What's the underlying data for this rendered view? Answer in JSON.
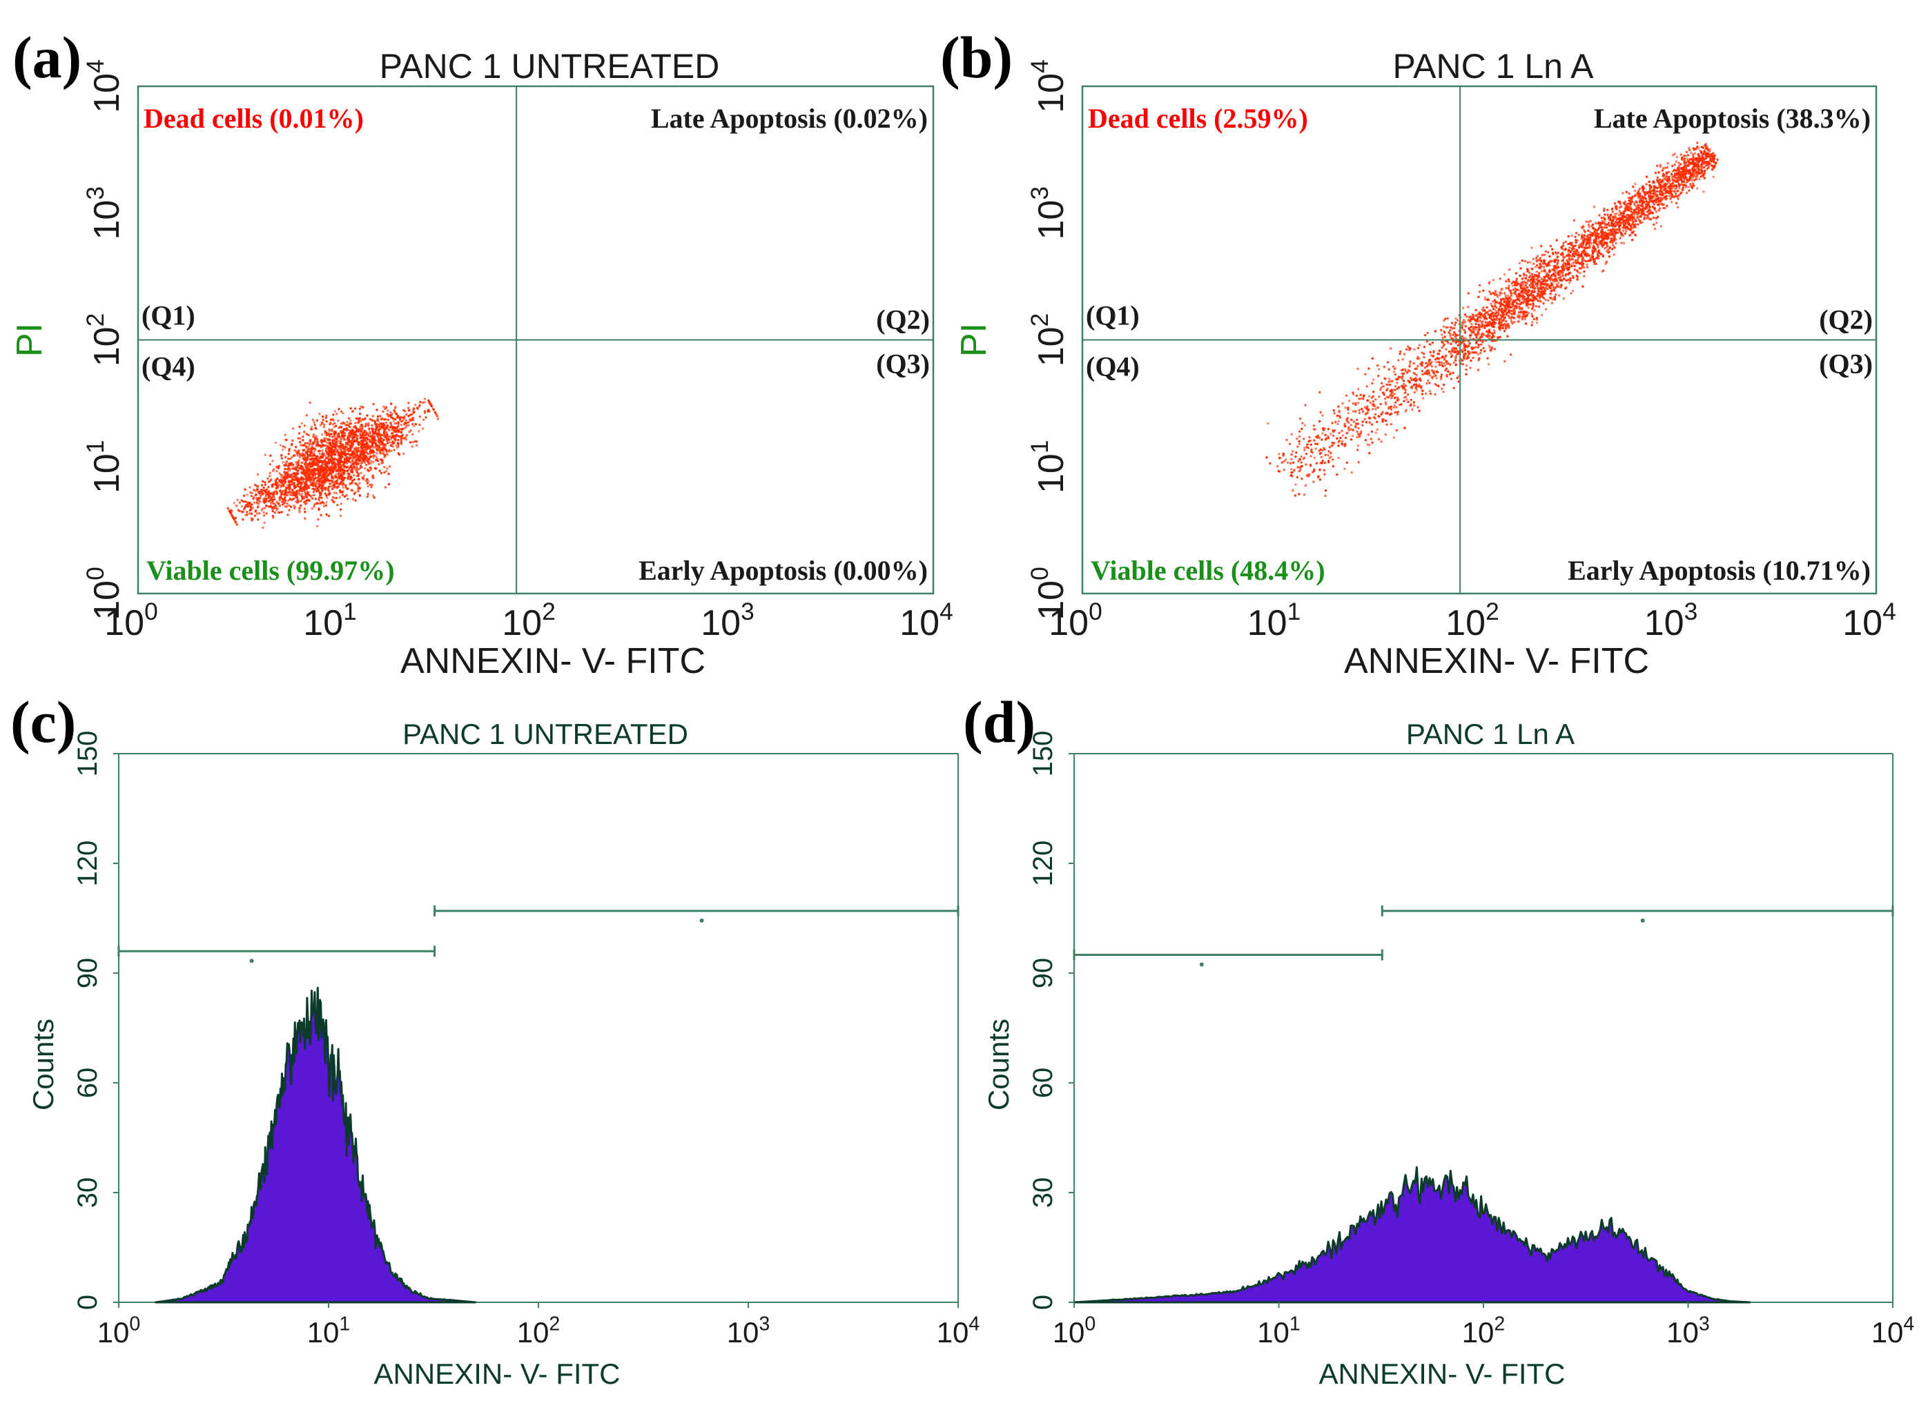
{
  "figure": {
    "colors": {
      "frame": "#3f7f62",
      "dot": "#ff2a00",
      "dead": "#ff0000",
      "viable": "#1a8f1a",
      "fill": "#5a17d6",
      "edge": "#0d3b2a",
      "text": "#1a1a1a"
    }
  },
  "chart_data": [
    {
      "id": "a",
      "panel_label": "(a)",
      "type": "scatter",
      "title": "PANC 1 UNTREATED",
      "xlabel": "ANNEXIN- V- FITC",
      "ylabel": "PI",
      "xlim": [
        1,
        10000
      ],
      "ylim": [
        1,
        10000
      ],
      "scale": "log",
      "ticks": [
        {
          "b": "10",
          "e": "0"
        },
        {
          "b": "10",
          "e": "1"
        },
        {
          "b": "10",
          "e": "2"
        },
        {
          "b": "10",
          "e": "3"
        },
        {
          "b": "10",
          "e": "4"
        }
      ],
      "gate_x": 80,
      "gate_y": 100,
      "quadrants": {
        "dead": "Dead cells (0.01%)",
        "late": "Late Apoptosis (0.02%)",
        "viable": "Viable cells (99.97%)",
        "early": "Early Apoptosis (0.00%)",
        "q1": "(Q1)",
        "q2": "(Q2)",
        "q3": "(Q3)",
        "q4": "(Q4)"
      },
      "population": [
        {
          "from_x": 3,
          "from_y": 4,
          "to_x": 30,
          "to_y": 30,
          "weight": 1.0
        }
      ]
    },
    {
      "id": "b",
      "panel_label": "(b)",
      "type": "scatter",
      "title": "PANC 1 Ln A",
      "xlabel": "ANNEXIN- V- FITC",
      "ylabel": "PI",
      "xlim": [
        1,
        10000
      ],
      "ylim": [
        1,
        10000
      ],
      "scale": "log",
      "ticks": [
        {
          "b": "10",
          "e": "0"
        },
        {
          "b": "10",
          "e": "1"
        },
        {
          "b": "10",
          "e": "2"
        },
        {
          "b": "10",
          "e": "3"
        },
        {
          "b": "10",
          "e": "4"
        }
      ],
      "gate_x": 80,
      "gate_y": 100,
      "quadrants": {
        "dead": "Dead cells (2.59%)",
        "late": "Late Apoptosis (38.3%)",
        "viable": "Viable cells (48.4%)",
        "early": "Early Apoptosis (10.71%)",
        "q1": "(Q1)",
        "q2": "(Q2)",
        "q3": "(Q3)",
        "q4": "(Q4)"
      },
      "population": [
        {
          "from_x": 10,
          "from_y": 8,
          "to_x": 1500,
          "to_y": 3000,
          "weight": 1.0
        }
      ]
    },
    {
      "id": "c",
      "panel_label": "(c)",
      "type": "area",
      "title": "PANC 1 UNTREATED",
      "xlabel": "ANNEXIN- V- FITC",
      "ylabel": "Counts",
      "xlim": [
        1,
        10000
      ],
      "ylim": [
        0,
        150
      ],
      "scale": "log-x",
      "xticks": [
        {
          "b": "10",
          "e": "0"
        },
        {
          "b": "10",
          "e": "1"
        },
        {
          "b": "10",
          "e": "2"
        },
        {
          "b": "10",
          "e": "3"
        },
        {
          "b": "10",
          "e": "4"
        }
      ],
      "yticks": [
        "0",
        "30",
        "60",
        "90",
        "120",
        "150"
      ],
      "markers": [
        {
          "from": 1,
          "to": 32,
          "y": 96,
          "tick": 4.3
        },
        {
          "from": 32,
          "to": 10000,
          "y": 107,
          "tick": 600
        }
      ],
      "histogram": {
        "x": [
          1.5,
          2,
          3,
          4,
          5,
          6,
          7,
          8,
          9,
          10,
          12,
          14,
          17,
          20,
          25,
          30,
          40,
          50
        ],
        "counts": [
          0,
          1,
          5,
          18,
          38,
          58,
          72,
          80,
          78,
          70,
          52,
          35,
          18,
          8,
          3,
          1,
          0.5,
          0
        ]
      }
    },
    {
      "id": "d",
      "panel_label": "(d)",
      "type": "area",
      "title": "PANC 1 Ln A",
      "xlabel": "ANNEXIN- V- FITC",
      "ylabel": "Counts",
      "xlim": [
        1,
        10000
      ],
      "ylim": [
        0,
        150
      ],
      "scale": "log-x",
      "xticks": [
        {
          "b": "10",
          "e": "0"
        },
        {
          "b": "10",
          "e": "1"
        },
        {
          "b": "10",
          "e": "2"
        },
        {
          "b": "10",
          "e": "3"
        },
        {
          "b": "10",
          "e": "4"
        }
      ],
      "yticks": [
        "0",
        "30",
        "60",
        "90",
        "120",
        "150"
      ],
      "markers": [
        {
          "from": 1,
          "to": 32,
          "y": 95,
          "tick": 4.2
        },
        {
          "from": 32,
          "to": 10000,
          "y": 107,
          "tick": 600
        }
      ],
      "histogram": {
        "x": [
          1,
          2,
          4,
          6,
          8,
          10,
          15,
          20,
          30,
          40,
          50,
          60,
          80,
          100,
          150,
          200,
          250,
          300,
          400,
          500,
          600,
          800,
          1000,
          1300,
          1600,
          2000
        ],
        "counts": [
          0,
          1,
          2,
          3,
          5,
          7,
          12,
          17,
          25,
          30,
          33,
          32,
          30,
          25,
          17,
          13,
          15,
          18,
          20,
          18,
          14,
          8,
          3,
          1,
          0.3,
          0
        ]
      }
    }
  ]
}
